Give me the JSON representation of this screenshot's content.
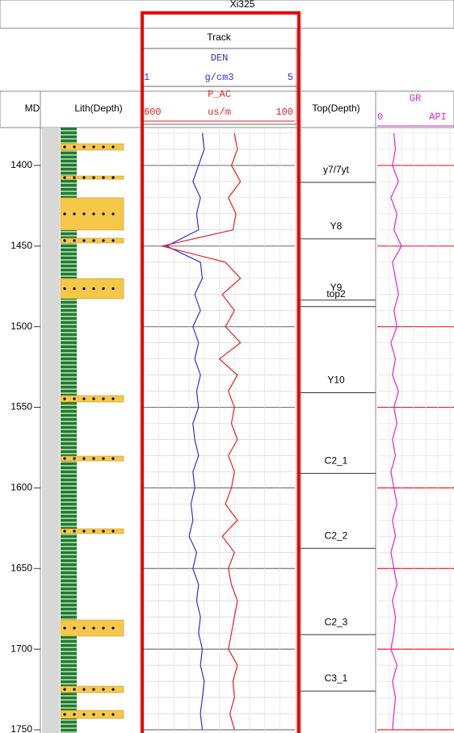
{
  "chart_data": {
    "type": "well-log",
    "title": "Xi325",
    "track_title": "Track",
    "depth_label": "MD",
    "lith_label": "Lith(Depth)",
    "tops_label": "Top(Depth)",
    "ylim": [
      1376.5,
      1752
    ],
    "yticks": [
      1400,
      1450,
      1500,
      1550,
      1600,
      1650,
      1700,
      1750
    ],
    "depths": [
      1380,
      1390,
      1400,
      1410,
      1420,
      1430,
      1440,
      1450,
      1460,
      1470,
      1480,
      1490,
      1500,
      1510,
      1520,
      1530,
      1540,
      1550,
      1560,
      1570,
      1580,
      1590,
      1600,
      1610,
      1620,
      1630,
      1640,
      1650,
      1660,
      1670,
      1680,
      1690,
      1700,
      1710,
      1720,
      1730,
      1740,
      1750
    ],
    "curves": [
      {
        "name": "DEN",
        "unit": "g/cm3",
        "color": "#3030dd",
        "xlim": [
          1,
          5
        ],
        "values": [
          2.55,
          2.6,
          2.45,
          2.3,
          2.5,
          2.4,
          2.45,
          1.6,
          2.5,
          2.55,
          2.35,
          2.5,
          2.3,
          2.45,
          2.35,
          2.5,
          2.4,
          2.45,
          2.3,
          2.35,
          2.45,
          2.3,
          2.35,
          2.25,
          2.3,
          2.2,
          2.4,
          2.3,
          2.45,
          2.4,
          2.5,
          2.45,
          2.55,
          2.5,
          2.6,
          2.55,
          2.5,
          2.55
        ]
      },
      {
        "name": "P_AC",
        "unit": "us/m",
        "color": "#e82020",
        "xlim": [
          600,
          100
        ],
        "values": [
          300,
          290,
          310,
          280,
          320,
          295,
          305,
          540,
          330,
          280,
          340,
          300,
          330,
          280,
          350,
          290,
          320,
          300,
          310,
          290,
          320,
          300,
          310,
          330,
          290,
          340,
          300,
          320,
          310,
          290,
          300,
          310,
          320,
          290,
          305,
          300,
          315,
          300
        ]
      },
      {
        "name": "GR",
        "unit": "API",
        "color": "#e020e0",
        "xlim": [
          0,
          400
        ],
        "values": [
          55,
          60,
          50,
          70,
          45,
          65,
          55,
          80,
          50,
          60,
          70,
          55,
          65,
          45,
          60,
          50,
          70,
          55,
          65,
          50,
          60,
          45,
          55,
          65,
          50,
          60,
          45,
          55,
          65,
          50,
          60,
          55,
          45,
          65,
          50,
          60,
          55,
          50
        ]
      }
    ],
    "tops": [
      {
        "name": "y7/7yt",
        "depth": 1410.5
      },
      {
        "name": "Y8",
        "depth": 1445.5
      },
      {
        "name": "Y9",
        "depth": 1483.5
      },
      {
        "name": "top2",
        "depth": 1487.5
      },
      {
        "name": "Y10",
        "depth": 1541
      },
      {
        "name": "C2_1",
        "depth": 1591
      },
      {
        "name": "C2_2",
        "depth": 1637.5
      },
      {
        "name": "C2_3",
        "depth": 1691
      },
      {
        "name": "C3_1",
        "depth": 1726
      }
    ]
  }
}
